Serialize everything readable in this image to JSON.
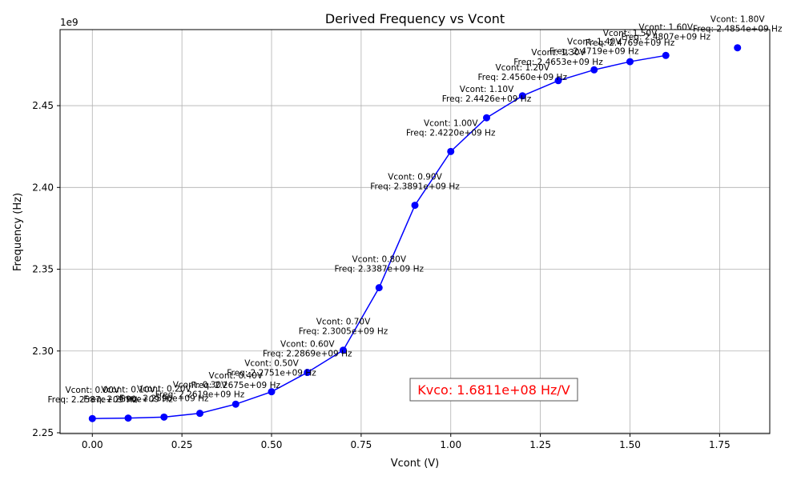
{
  "chart_data": {
    "type": "line",
    "title": "Derived Frequency vs Vcont",
    "xlabel": "Vcont (V)",
    "ylabel": "Frequency (Hz)",
    "y_scale_label": "1e9",
    "xlim": [
      -0.09,
      1.89
    ],
    "ylim": [
      2.2495,
      2.4965
    ],
    "y_scale": 1000000000,
    "x_ticks": [
      0.0,
      0.25,
      0.5,
      0.75,
      1.0,
      1.25,
      1.5,
      1.75
    ],
    "x_tick_labels": [
      "0.00",
      "0.25",
      "0.50",
      "0.75",
      "1.00",
      "1.25",
      "1.50",
      "1.75"
    ],
    "y_ticks": [
      2.25,
      2.3,
      2.35,
      2.4,
      2.45
    ],
    "y_tick_labels": [
      "2.25",
      "2.30",
      "2.35",
      "2.40",
      "2.45"
    ],
    "grid": true,
    "line_color": "#0000ff",
    "marker_color": "#0000ff",
    "series": [
      {
        "x": [
          0.0,
          0.1,
          0.2,
          0.3,
          0.4,
          0.5,
          0.6,
          0.7,
          0.8,
          0.9,
          1.0,
          1.1,
          1.2,
          1.3,
          1.4,
          1.5,
          1.6
        ],
        "y": [
          2.2587,
          2.259,
          2.2596,
          2.2619,
          2.2675,
          2.2751,
          2.2869,
          2.3005,
          2.3387,
          2.3891,
          2.422,
          2.4426,
          2.456,
          2.4653,
          2.4719,
          2.4769,
          2.4807
        ]
      },
      {
        "x": [
          1.8
        ],
        "y": [
          2.4854
        ],
        "markers_only": true
      }
    ],
    "annotations": [
      {
        "x": 0.0,
        "y": 2.2587,
        "line1": "Vcont: 0.00V",
        "line2": "Freq: 2.2587e+09 Hz"
      },
      {
        "x": 0.1,
        "y": 2.259,
        "line1": "Vcont: 0.10V",
        "line2": "Freq: 2.2590e+09 Hz"
      },
      {
        "x": 0.2,
        "y": 2.2596,
        "line1": "Vcont: 0.20V",
        "line2": "Freq: 2.2596e+09 Hz"
      },
      {
        "x": 0.3,
        "y": 2.2619,
        "line1": "Vcont: 0.30V",
        "line2": "Freq: 2.2619e+09 Hz"
      },
      {
        "x": 0.4,
        "y": 2.2675,
        "line1": "Vcont: 0.40V",
        "line2": "Freq: 2.2675e+09 Hz"
      },
      {
        "x": 0.5,
        "y": 2.2751,
        "line1": "Vcont: 0.50V",
        "line2": "Freq: 2.2751e+09 Hz"
      },
      {
        "x": 0.6,
        "y": 2.2869,
        "line1": "Vcont: 0.60V",
        "line2": "Freq: 2.2869e+09 Hz"
      },
      {
        "x": 0.7,
        "y": 2.3005,
        "line1": "Vcont: 0.70V",
        "line2": "Freq: 2.3005e+09 Hz"
      },
      {
        "x": 0.8,
        "y": 2.3387,
        "line1": "Vcont: 0.80V",
        "line2": "Freq: 2.3387e+09 Hz"
      },
      {
        "x": 0.9,
        "y": 2.3891,
        "line1": "Vcont: 0.90V",
        "line2": "Freq: 2.3891e+09 Hz"
      },
      {
        "x": 1.0,
        "y": 2.422,
        "line1": "Vcont: 1.00V",
        "line2": "Freq: 2.4220e+09 Hz"
      },
      {
        "x": 1.1,
        "y": 2.4426,
        "line1": "Vcont: 1.10V",
        "line2": "Freq: 2.4426e+09 Hz"
      },
      {
        "x": 1.2,
        "y": 2.456,
        "line1": "Vcont: 1.20V",
        "line2": "Freq: 2.4560e+09 Hz"
      },
      {
        "x": 1.3,
        "y": 2.4653,
        "line1": "Vcont: 1.30V",
        "line2": "Freq: 2.4653e+09 Hz"
      },
      {
        "x": 1.4,
        "y": 2.4719,
        "line1": "Vcont: 1.40V",
        "line2": "Freq: 2.4719e+09 Hz"
      },
      {
        "x": 1.5,
        "y": 2.4769,
        "line1": "Vcont: 1.50V",
        "line2": "Freq: 2.4769e+09 Hz"
      },
      {
        "x": 1.6,
        "y": 2.4807,
        "line1": "Vcont: 1.60V",
        "line2": "Freq: 2.4807e+09 Hz"
      },
      {
        "x": 1.8,
        "y": 2.4854,
        "line1": "Vcont: 1.80V",
        "line2": "Freq: 2.4854e+09 Hz"
      }
    ],
    "kvco_label": "Kvco: 1.6811e+08 Hz/V",
    "kvco_color": "#ff0000",
    "kvco_placement": "lower-right"
  }
}
